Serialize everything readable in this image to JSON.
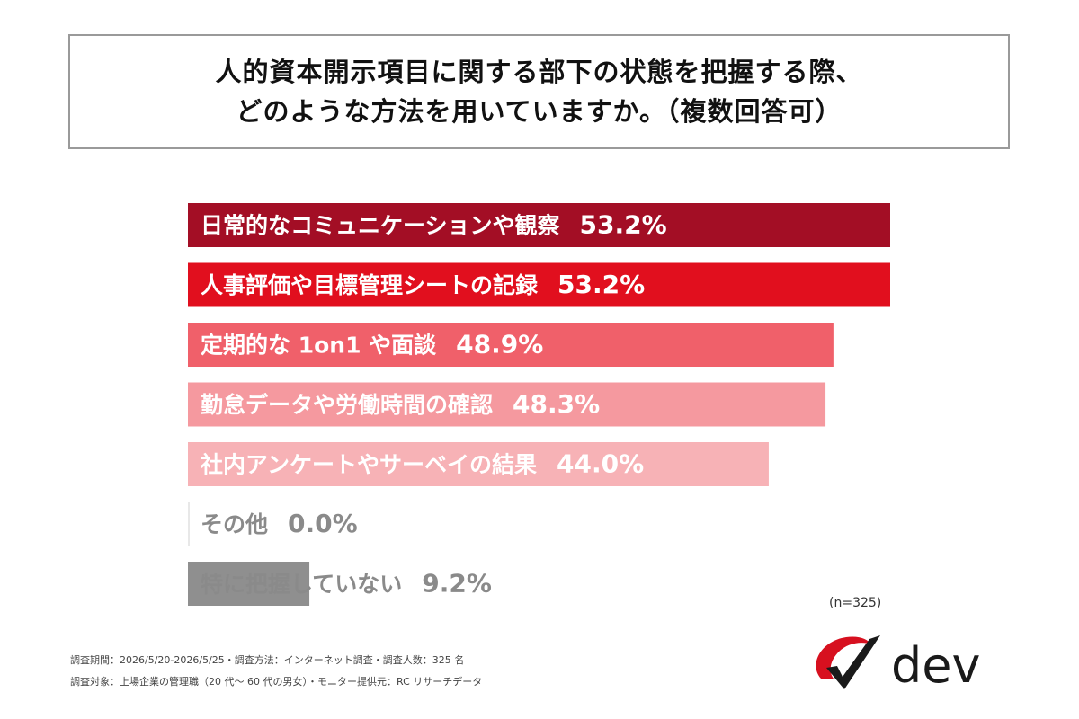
{
  "title": {
    "line1": "人的資本開示項目に関する部下の状態を把握する際、",
    "line2": "どのような方法を用いていますか。（複数回答可）"
  },
  "chart_data": {
    "type": "bar",
    "orientation": "horizontal",
    "categories": [
      "日常的なコミュニケーションや観察",
      "人事評価や目標管理シートの記録",
      "定期的な 1on1 や面談",
      "勤怠データや労働時間の確認",
      "社内アンケートやサーベイの結果",
      "その他",
      "特に把握していない"
    ],
    "values": [
      53.2,
      53.2,
      48.9,
      48.3,
      44.0,
      0.0,
      9.2
    ],
    "value_labels": [
      "53.2%",
      "53.2%",
      "48.9%",
      "48.3%",
      "44.0%",
      "0.0%",
      "9.2%"
    ],
    "colors": [
      "#a30e25",
      "#e10f1e",
      "#f0606a",
      "#f5999f",
      "#f7b2b6",
      "#e8e8e8",
      "#8f8f8f"
    ],
    "label_colors": [
      "#ffffff",
      "#ffffff",
      "#ffffff",
      "#ffffff",
      "#ffffff",
      "#8a8a8a",
      "#8a8a8a"
    ],
    "xlim": [
      0,
      53.2
    ],
    "grid": false,
    "legend": "none"
  },
  "sample_size": "(n=325)",
  "footer": {
    "line1": "調査期間：2026/5/20-2026/5/25・調査方法：インターネット調査・調査人数：325 名",
    "line2": "調査対象：上場企業の管理職（20 代～ 60 代の男女）・モニター提供元：RC リサーチデータ"
  },
  "logo": {
    "text": "dev",
    "icon": "checkmark-swoosh-icon",
    "accent": "#d7101f",
    "dark": "#1a1a1a"
  }
}
